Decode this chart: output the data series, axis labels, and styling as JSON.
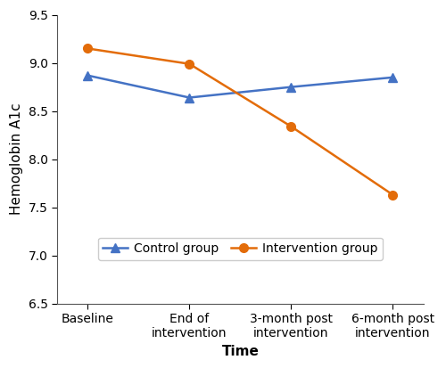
{
  "x_labels": [
    "Baseline",
    "End of\nintervention",
    "3-month post\nintervention",
    "6-month post\nintervention"
  ],
  "x_values": [
    0,
    1,
    2,
    3
  ],
  "control_values": [
    8.87,
    8.64,
    8.75,
    8.85
  ],
  "intervention_values": [
    9.15,
    8.99,
    8.34,
    7.63
  ],
  "control_color": "#4472C4",
  "intervention_color": "#E36C09",
  "control_label": "Control group",
  "intervention_label": "Intervention group",
  "ylabel": "Hemoglobin A1c",
  "xlabel": "Time",
  "ylim": [
    6.5,
    9.5
  ],
  "yticks": [
    6.5,
    7.0,
    7.5,
    8.0,
    8.5,
    9.0,
    9.5
  ],
  "axis_label_fontsize": 11,
  "tick_fontsize": 10,
  "legend_fontsize": 10,
  "linewidth": 1.8,
  "markersize": 7
}
